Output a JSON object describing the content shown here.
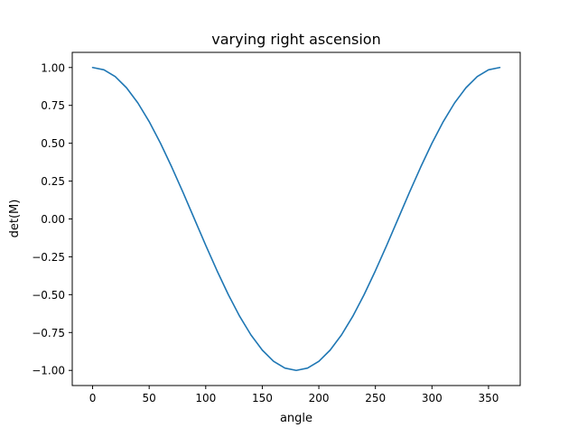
{
  "chart_data": {
    "type": "line",
    "title": "varying right ascension",
    "xlabel": "angle",
    "ylabel": "det(M)",
    "xlim": [
      -18,
      378
    ],
    "ylim": [
      -1.1,
      1.1
    ],
    "xticks": [
      0,
      50,
      100,
      150,
      200,
      250,
      300,
      350
    ],
    "xtick_labels": [
      "0",
      "50",
      "100",
      "150",
      "200",
      "250",
      "300",
      "350"
    ],
    "yticks": [
      1.0,
      0.75,
      0.5,
      0.25,
      0.0,
      -0.25,
      -0.5,
      -0.75,
      -1.0
    ],
    "ytick_labels": [
      "1.00",
      "0.75",
      "0.50",
      "0.25",
      "0.00",
      "−0.25",
      "−0.50",
      "−0.75",
      "−1.00"
    ],
    "grid": false,
    "legend": "none",
    "series": [
      {
        "color": "#1f77b4",
        "x": [
          0,
          10,
          20,
          30,
          40,
          50,
          60,
          70,
          80,
          90,
          100,
          110,
          120,
          130,
          140,
          150,
          160,
          170,
          180,
          190,
          200,
          210,
          220,
          230,
          240,
          250,
          260,
          270,
          280,
          290,
          300,
          310,
          320,
          330,
          340,
          350,
          360
        ],
        "y": [
          1.0,
          0.985,
          0.94,
          0.866,
          0.766,
          0.643,
          0.5,
          0.342,
          0.174,
          0.0,
          -0.174,
          -0.342,
          -0.5,
          -0.643,
          -0.766,
          -0.866,
          -0.94,
          -0.985,
          -1.0,
          -0.985,
          -0.94,
          -0.866,
          -0.766,
          -0.643,
          -0.5,
          -0.342,
          -0.174,
          0.0,
          0.174,
          0.342,
          0.5,
          0.643,
          0.766,
          0.866,
          0.94,
          0.985,
          1.0
        ]
      }
    ]
  }
}
